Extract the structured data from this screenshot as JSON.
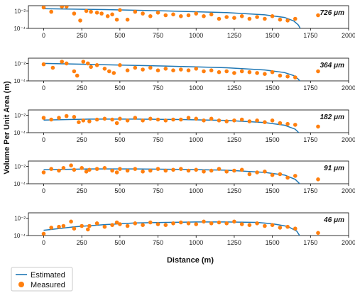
{
  "chart_data": {
    "type": "scatter",
    "xlabel": "Distance (m)",
    "ylabel": "Volume Per Unit Area (m)",
    "xlim": [
      -100,
      2000
    ],
    "xticks": [
      0,
      250,
      500,
      750,
      1000,
      1250,
      1500,
      1750,
      2000
    ],
    "y_scale": "log",
    "ylim_log10": [
      -4,
      -1.4
    ],
    "yticks": [
      "10⁻²",
      "10⁻⁴"
    ],
    "ytick_values_log10": [
      -2,
      -4
    ],
    "legend": {
      "placement": "bottom-left",
      "entries": [
        "Estimated",
        "Measured"
      ]
    },
    "colors": {
      "estimated": "#1f77b4",
      "measured": "#ff7f0e"
    },
    "panels": [
      {
        "label": "726 μm",
        "estimated": {
          "x": [
            0,
            400,
            800,
            1200,
            1450,
            1580,
            1640,
            1670,
            1690
          ],
          "log10_y": [
            -1.75,
            -1.85,
            -2.0,
            -2.2,
            -2.45,
            -2.75,
            -3.15,
            -3.6,
            -4.2
          ]
        },
        "measured": {
          "x": [
            0,
            50,
            120,
            150,
            200,
            240,
            280,
            310,
            350,
            380,
            420,
            450,
            480,
            500,
            550,
            600,
            650,
            700,
            750,
            800,
            850,
            900,
            950,
            1000,
            1050,
            1100,
            1150,
            1200,
            1250,
            1300,
            1350,
            1400,
            1450,
            1500,
            1550,
            1600,
            1650,
            1800
          ],
          "log10_y": [
            -1.6,
            -2.1,
            -1.5,
            -1.5,
            -2.3,
            -3.1,
            -2.0,
            -2.1,
            -2.2,
            -2.3,
            -2.6,
            -2.4,
            -3.0,
            -1.9,
            -3.0,
            -2.1,
            -2.3,
            -2.6,
            -2.2,
            -2.5,
            -2.4,
            -2.6,
            -2.5,
            -2.3,
            -2.6,
            -2.4,
            -2.9,
            -2.7,
            -2.8,
            -2.6,
            -2.9,
            -2.7,
            -2.9,
            -2.6,
            -3.0,
            -3.1,
            -2.9,
            -2.5
          ]
        }
      },
      {
        "label": "364 μm",
        "estimated": {
          "x": [
            0,
            400,
            800,
            1200,
            1450,
            1580,
            1640,
            1670,
            1690
          ],
          "log10_y": [
            -2.0,
            -2.15,
            -2.3,
            -2.5,
            -2.75,
            -3.05,
            -3.4,
            -3.8,
            -4.2
          ]
        },
        "measured": {
          "x": [
            0,
            60,
            120,
            150,
            200,
            220,
            260,
            290,
            310,
            350,
            400,
            430,
            460,
            500,
            550,
            600,
            650,
            700,
            750,
            800,
            850,
            900,
            950,
            1000,
            1050,
            1100,
            1150,
            1200,
            1250,
            1300,
            1350,
            1400,
            1450,
            1500,
            1550,
            1600,
            1650,
            1800
          ],
          "log10_y": [
            -2.1,
            -2.5,
            -1.8,
            -2.0,
            -2.9,
            -3.4,
            -1.8,
            -2.0,
            -2.4,
            -2.2,
            -2.6,
            -2.9,
            -3.1,
            -2.2,
            -2.8,
            -2.5,
            -2.7,
            -2.5,
            -2.8,
            -2.6,
            -2.8,
            -2.7,
            -2.8,
            -2.6,
            -2.9,
            -2.8,
            -3.0,
            -2.9,
            -3.1,
            -2.9,
            -3.0,
            -3.1,
            -3.2,
            -3.0,
            -3.4,
            -3.5,
            -3.6,
            -2.9
          ]
        }
      },
      {
        "label": "182 μm",
        "estimated": {
          "x": [
            0,
            300,
            600,
            900,
            1200,
            1450,
            1580,
            1650,
            1685,
            1700
          ],
          "log10_y": [
            -2.55,
            -2.45,
            -2.45,
            -2.5,
            -2.6,
            -2.85,
            -3.15,
            -3.6,
            -4.2,
            -5.0
          ]
        },
        "measured": {
          "x": [
            0,
            50,
            100,
            150,
            200,
            230,
            260,
            300,
            350,
            400,
            450,
            480,
            500,
            550,
            600,
            650,
            700,
            750,
            800,
            850,
            900,
            950,
            1000,
            1050,
            1100,
            1150,
            1200,
            1250,
            1300,
            1350,
            1400,
            1450,
            1500,
            1550,
            1600,
            1650,
            1800
          ],
          "log10_y": [
            -2.3,
            -2.5,
            -2.3,
            -2.1,
            -2.2,
            -2.8,
            -2.6,
            -2.7,
            -2.5,
            -2.4,
            -2.5,
            -2.9,
            -2.4,
            -2.6,
            -2.3,
            -2.6,
            -2.4,
            -2.5,
            -2.6,
            -2.5,
            -2.5,
            -2.3,
            -2.4,
            -2.6,
            -2.4,
            -2.6,
            -2.7,
            -2.6,
            -2.5,
            -2.7,
            -2.6,
            -2.8,
            -2.6,
            -2.9,
            -3.0,
            -3.1,
            -3.3
          ]
        }
      },
      {
        "label": "91 μm",
        "estimated": {
          "x": [
            0,
            300,
            600,
            900,
            1200,
            1450,
            1580,
            1650,
            1685,
            1700
          ],
          "log10_y": [
            -2.4,
            -2.3,
            -2.3,
            -2.35,
            -2.45,
            -2.7,
            -3.0,
            -3.5,
            -4.1,
            -5.0
          ]
        },
        "measured": {
          "x": [
            0,
            50,
            100,
            130,
            180,
            200,
            250,
            280,
            300,
            350,
            400,
            450,
            480,
            500,
            550,
            600,
            650,
            700,
            750,
            800,
            850,
            900,
            950,
            1000,
            1050,
            1100,
            1150,
            1200,
            1250,
            1300,
            1350,
            1400,
            1450,
            1500,
            1550,
            1600,
            1650,
            1800
          ],
          "log10_y": [
            -2.7,
            -2.3,
            -2.5,
            -2.2,
            -1.9,
            -2.4,
            -2.2,
            -2.6,
            -2.4,
            -2.3,
            -2.2,
            -2.5,
            -2.7,
            -2.3,
            -2.5,
            -2.3,
            -2.6,
            -2.5,
            -2.3,
            -2.5,
            -2.4,
            -2.3,
            -2.5,
            -2.4,
            -2.6,
            -2.5,
            -2.3,
            -2.6,
            -2.5,
            -2.4,
            -2.9,
            -2.7,
            -2.6,
            -3.0,
            -2.9,
            -3.3,
            -3.1,
            -3.5
          ]
        }
      },
      {
        "label": "46 μm",
        "estimated": {
          "x": [
            0,
            200,
            400,
            600,
            800,
            1000,
            1200,
            1400,
            1500,
            1600,
            1660,
            1690,
            1700
          ],
          "log10_y": [
            -3.4,
            -3.0,
            -2.75,
            -2.55,
            -2.5,
            -2.45,
            -2.45,
            -2.5,
            -2.65,
            -2.95,
            -3.5,
            -4.3,
            -5.0
          ]
        },
        "measured": {
          "x": [
            0,
            50,
            100,
            130,
            180,
            200,
            250,
            290,
            300,
            350,
            400,
            450,
            480,
            500,
            550,
            600,
            650,
            700,
            750,
            800,
            850,
            900,
            950,
            1000,
            1050,
            1100,
            1150,
            1200,
            1250,
            1300,
            1350,
            1400,
            1450,
            1500,
            1550,
            1600,
            1650,
            1800
          ],
          "log10_y": [
            -3.8,
            -3.1,
            -3.0,
            -2.9,
            -2.4,
            -3.2,
            -2.9,
            -3.3,
            -2.9,
            -2.6,
            -3.0,
            -2.8,
            -2.5,
            -2.7,
            -2.9,
            -2.6,
            -2.8,
            -2.5,
            -2.7,
            -2.8,
            -2.6,
            -2.5,
            -2.6,
            -2.7,
            -2.4,
            -2.6,
            -2.5,
            -2.6,
            -2.4,
            -2.7,
            -2.8,
            -2.6,
            -2.9,
            -2.8,
            -3.1,
            -3.0,
            -3.2,
            -3.7
          ]
        }
      }
    ]
  }
}
